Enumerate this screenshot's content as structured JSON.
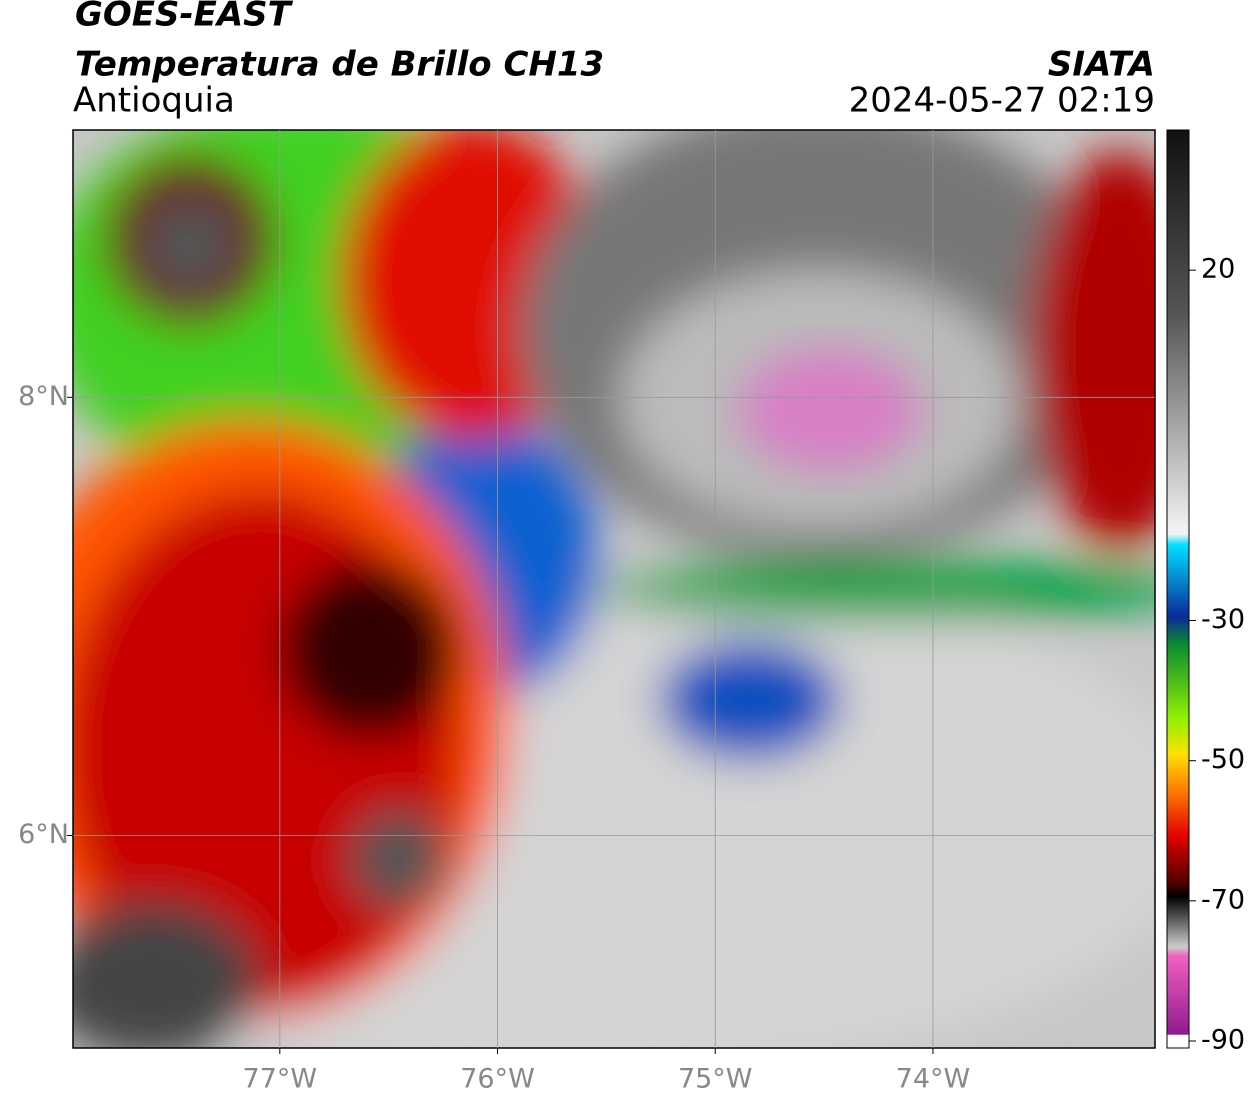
{
  "header": {
    "title": "GOES-EAST",
    "product": "Temperatura de Brillo CH13",
    "region": "Antioquia",
    "source": "SIATA",
    "datetime": "2024-05-27 02:19"
  },
  "map": {
    "lonlim": [
      -77.95,
      -72.98
    ],
    "latlim": [
      5.03,
      9.22
    ],
    "lonticks": [
      {
        "value": -77,
        "label": "77°W"
      },
      {
        "value": -76,
        "label": "76°W"
      },
      {
        "value": -75,
        "label": "75°W"
      },
      {
        "value": -74,
        "label": "74°W"
      }
    ],
    "latticks": [
      {
        "value": 8,
        "label": "8°N"
      },
      {
        "value": 6,
        "label": "6°N"
      }
    ],
    "grid": true
  },
  "colorbar": {
    "lim": [
      -91,
      40
    ],
    "ticks": [
      20,
      -30,
      -50,
      -70,
      -90
    ]
  }
}
